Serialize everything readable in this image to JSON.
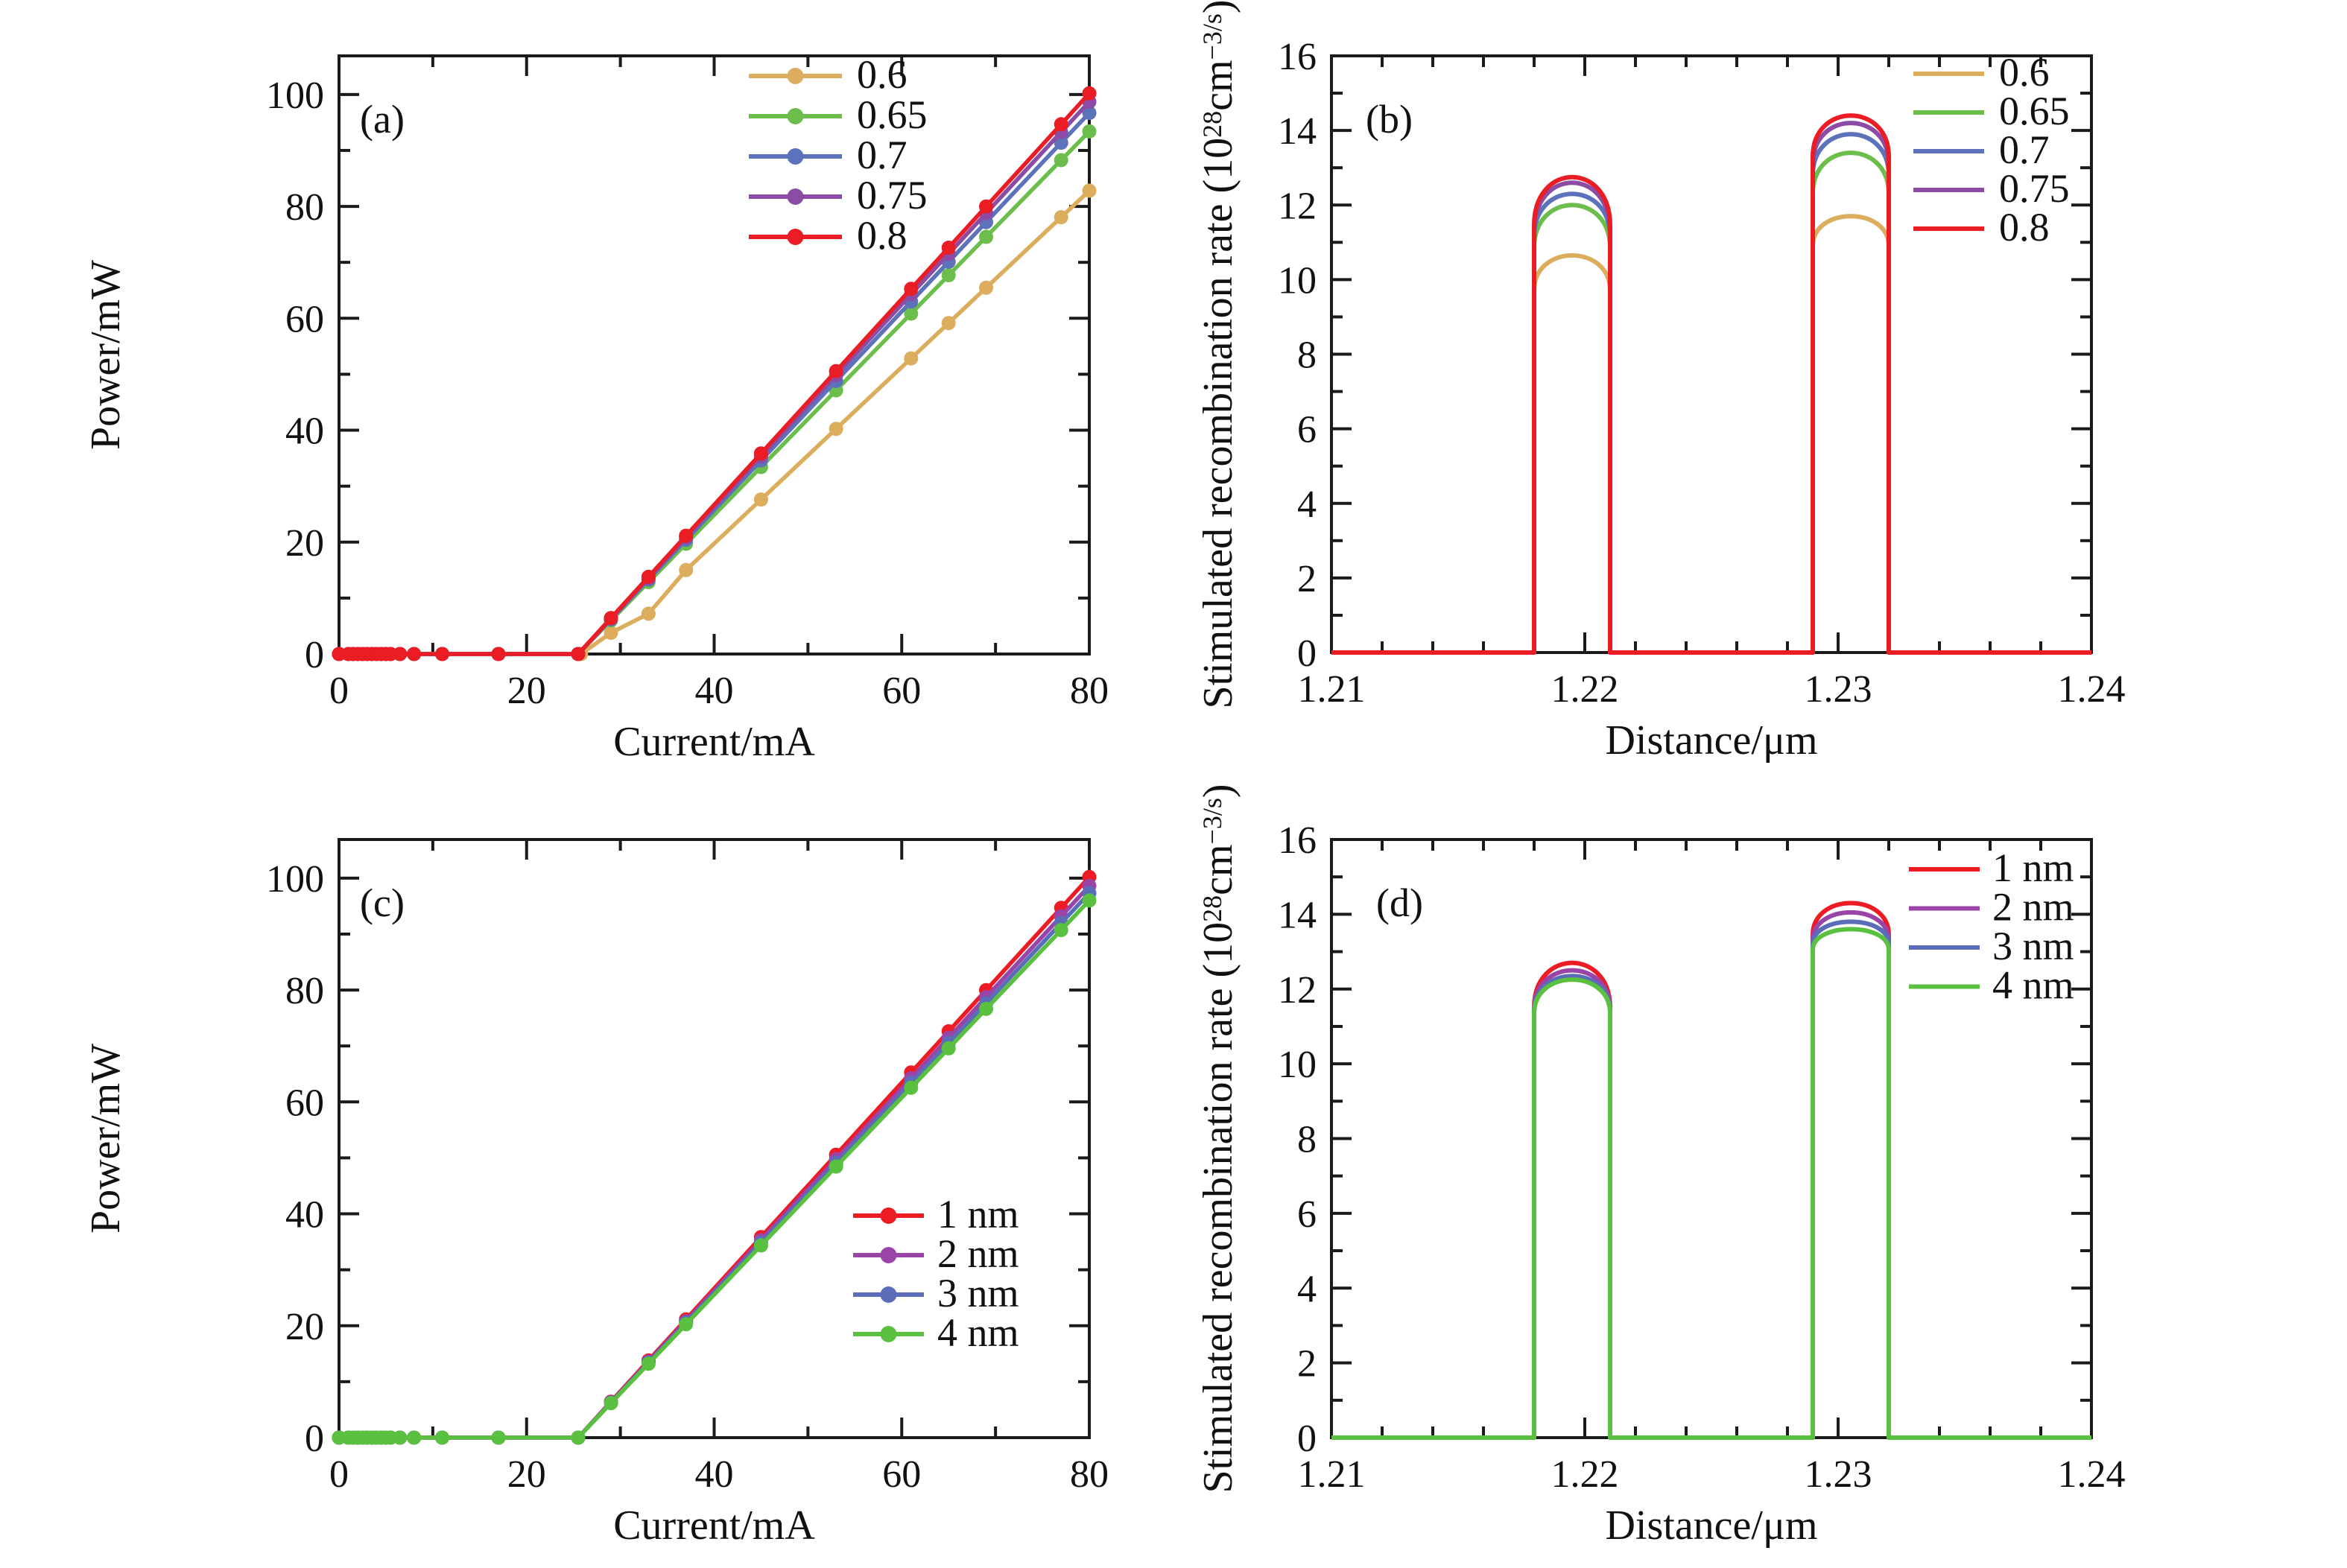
{
  "figure": {
    "background": "#ffffff",
    "axis_color": "#1a1a1a",
    "panel_letters": [
      "(a)",
      "(b)",
      "(c)",
      "(d)"
    ]
  },
  "chart_data": [
    {
      "id": "a",
      "type": "line",
      "letter": "(a)",
      "xlabel": "Current/mA",
      "ylabel": "Power/mW",
      "xlim": [
        0,
        80
      ],
      "ylim": [
        0,
        106.9
      ],
      "x_major_ticks": [
        0,
        20,
        40,
        60,
        80
      ],
      "x_tick_labels": [
        "0",
        "20",
        "40",
        "60",
        "80"
      ],
      "x_minor_step": 10,
      "y_major_ticks": [
        0,
        20,
        40,
        60,
        80,
        100
      ],
      "y_tick_labels": [
        "0",
        "20",
        "40",
        "60",
        "80",
        "100"
      ],
      "y_minor_step": 10,
      "grid": false,
      "legend_position": "upper right inside",
      "zero_marker_currents": [
        0,
        1,
        1.5,
        2,
        2.5,
        3,
        3.5,
        4,
        4.5,
        5,
        5.5,
        6.5,
        8,
        11,
        17
      ],
      "rise_marker_currents": [
        29,
        33,
        37,
        45,
        53,
        61,
        65,
        69,
        77,
        80
      ],
      "series": [
        {
          "label": "0.6",
          "color": "#DBAD5C",
          "threshold_mA": 25.8,
          "power_at_80mA": 82.8,
          "kink_points": [
            [
              29,
              3.8
            ],
            [
              33,
              7.2
            ],
            [
              37,
              15
            ]
          ]
        },
        {
          "label": "0.65",
          "color": "#6CBE4C",
          "threshold_mA": 25.5,
          "power_at_80mA": 93.4
        },
        {
          "label": "0.7",
          "color": "#5C72BA",
          "threshold_mA": 25.5,
          "power_at_80mA": 96.7
        },
        {
          "label": "0.75",
          "color": "#8C4CA6",
          "threshold_mA": 25.5,
          "power_at_80mA": 98.7
        },
        {
          "label": "0.8",
          "color": "#EA1C24",
          "threshold_mA": 25.5,
          "power_at_80mA": 100.2
        }
      ]
    },
    {
      "id": "b",
      "type": "wells",
      "letter": "(b)",
      "xlabel": "Distance/μm",
      "ylabel_parts": [
        {
          "t": "Stimulated recombination rate (10"
        },
        {
          "t": "28",
          "sup": true
        },
        {
          "t": "cm"
        },
        {
          "t": "−3/s",
          "sup": true
        },
        {
          "t": ")"
        }
      ],
      "xlim": [
        1.21,
        1.24
      ],
      "ylim": [
        0,
        16
      ],
      "x_major_ticks": [
        1.21,
        1.22,
        1.23,
        1.24
      ],
      "x_tick_labels": [
        "1.21",
        "1.22",
        "1.23",
        "1.24"
      ],
      "x_minor_step": 0.002,
      "y_major_ticks": [
        0,
        2,
        4,
        6,
        8,
        10,
        12,
        14,
        16
      ],
      "y_tick_labels": [
        "0",
        "2",
        "4",
        "6",
        "8",
        "10",
        "12",
        "14",
        "16"
      ],
      "y_minor_step": 1,
      "grid": false,
      "legend_position": "upper right inside",
      "wells_x_um": [
        [
          1.218,
          1.221
        ],
        [
          1.229,
          1.232
        ]
      ],
      "series": [
        {
          "label": "0.6",
          "color": "#DBAD5C",
          "well1": {
            "edge": 9.7,
            "peak": 10.65
          },
          "well2": {
            "edge": 10.9,
            "peak": 11.7
          }
        },
        {
          "label": "0.65",
          "color": "#6CBE4C",
          "well1": {
            "edge": 10.85,
            "peak": 12.0
          },
          "well2": {
            "edge": 12.3,
            "peak": 13.4
          }
        },
        {
          "label": "0.7",
          "color": "#5C72BA",
          "well1": {
            "edge": 11.15,
            "peak": 12.3
          },
          "well2": {
            "edge": 12.8,
            "peak": 13.9
          }
        },
        {
          "label": "0.75",
          "color": "#8C4CA6",
          "well1": {
            "edge": 11.3,
            "peak": 12.6
          },
          "well2": {
            "edge": 13.1,
            "peak": 14.2
          }
        },
        {
          "label": "0.8",
          "color": "#EA1C24",
          "well1": {
            "edge": 11.45,
            "peak": 12.75
          },
          "well2": {
            "edge": 13.3,
            "peak": 14.4
          }
        }
      ]
    },
    {
      "id": "c",
      "type": "line",
      "letter": "(c)",
      "xlabel": "Current/mA",
      "ylabel": "Power/mW",
      "xlim": [
        0,
        80
      ],
      "ylim": [
        0,
        106.9
      ],
      "x_major_ticks": [
        0,
        20,
        40,
        60,
        80
      ],
      "x_tick_labels": [
        "0",
        "20",
        "40",
        "60",
        "80"
      ],
      "x_minor_step": 10,
      "y_major_ticks": [
        0,
        20,
        40,
        60,
        80,
        100
      ],
      "y_tick_labels": [
        "0",
        "20",
        "40",
        "60",
        "80",
        "100"
      ],
      "y_minor_step": 10,
      "grid": false,
      "legend_position": "center right inside",
      "zero_marker_currents": [
        0,
        1,
        1.5,
        2,
        2.5,
        3,
        3.5,
        4,
        4.5,
        5,
        5.5,
        6.5,
        8,
        11,
        17
      ],
      "rise_marker_currents": [
        29,
        33,
        37,
        45,
        53,
        61,
        65,
        69,
        77,
        80
      ],
      "series": [
        {
          "label": "1 nm",
          "color": "#ED1C24",
          "threshold_mA": 25.5,
          "power_at_80mA": 100.2
        },
        {
          "label": "2 nm",
          "color": "#9B44A8",
          "threshold_mA": 25.5,
          "power_at_80mA": 98.6
        },
        {
          "label": "3 nm",
          "color": "#5B6DB8",
          "threshold_mA": 25.5,
          "power_at_80mA": 97.3
        },
        {
          "label": "4 nm",
          "color": "#59C13F",
          "threshold_mA": 25.5,
          "power_at_80mA": 96.0
        }
      ]
    },
    {
      "id": "d",
      "type": "wells",
      "letter": "(d)",
      "xlabel": "Distance/μm",
      "ylabel_parts": [
        {
          "t": "Stimulated recombination rate (10"
        },
        {
          "t": "28",
          "sup": true
        },
        {
          "t": "cm"
        },
        {
          "t": "−3/s",
          "sup": true
        },
        {
          "t": ")"
        }
      ],
      "xlim": [
        1.21,
        1.24
      ],
      "ylim": [
        0,
        16
      ],
      "x_major_ticks": [
        1.21,
        1.22,
        1.23,
        1.24
      ],
      "x_tick_labels": [
        "1.21",
        "1.22",
        "1.23",
        "1.24"
      ],
      "x_minor_step": 0.002,
      "y_major_ticks": [
        0,
        2,
        4,
        6,
        8,
        10,
        12,
        14,
        16
      ],
      "y_tick_labels": [
        "0",
        "2",
        "4",
        "6",
        "8",
        "10",
        "12",
        "14",
        "16"
      ],
      "y_minor_step": 1,
      "grid": false,
      "legend_position": "upper right inside",
      "wells_x_um": [
        [
          1.218,
          1.221
        ],
        [
          1.229,
          1.232
        ]
      ],
      "series": [
        {
          "label": "1 nm",
          "color": "#ED1C24",
          "well1": {
            "edge": 11.5,
            "peak": 12.7
          },
          "well2": {
            "edge": 13.45,
            "peak": 14.3
          }
        },
        {
          "label": "2 nm",
          "color": "#9B44A8",
          "well1": {
            "edge": 11.45,
            "peak": 12.5
          },
          "well2": {
            "edge": 13.3,
            "peak": 14.05
          }
        },
        {
          "label": "3 nm",
          "color": "#5B6DB8",
          "well1": {
            "edge": 11.4,
            "peak": 12.35
          },
          "well2": {
            "edge": 13.2,
            "peak": 13.8
          }
        },
        {
          "label": "4 nm",
          "color": "#59C13F",
          "well1": {
            "edge": 11.35,
            "peak": 12.25
          },
          "well2": {
            "edge": 13.05,
            "peak": 13.6
          }
        }
      ]
    }
  ]
}
